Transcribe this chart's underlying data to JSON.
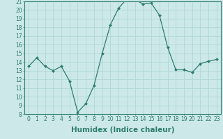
{
  "xlabel": "Humidex (Indice chaleur)",
  "x": [
    0,
    1,
    2,
    3,
    4,
    5,
    6,
    7,
    8,
    9,
    10,
    11,
    12,
    13,
    14,
    15,
    16,
    17,
    18,
    19,
    20,
    21,
    22,
    23
  ],
  "y": [
    13.5,
    14.5,
    13.5,
    13.0,
    13.5,
    11.8,
    8.2,
    9.2,
    11.3,
    15.0,
    18.3,
    20.2,
    21.3,
    21.2,
    20.7,
    20.8,
    19.4,
    15.7,
    13.1,
    13.1,
    12.8,
    13.8,
    14.1,
    14.3
  ],
  "line_color": "#2e7d6e",
  "marker": "D",
  "marker_size": 2.0,
  "bg_color": "#cce8e8",
  "grid_color": "#b0d8d8",
  "ylim": [
    8,
    21
  ],
  "xlim": [
    -0.5,
    23.5
  ],
  "yticks": [
    8,
    9,
    10,
    11,
    12,
    13,
    14,
    15,
    16,
    17,
    18,
    19,
    20,
    21
  ],
  "xticks": [
    0,
    1,
    2,
    3,
    4,
    5,
    6,
    7,
    8,
    9,
    10,
    11,
    12,
    13,
    14,
    15,
    16,
    17,
    18,
    19,
    20,
    21,
    22,
    23
  ],
  "tick_fontsize": 5.5,
  "label_fontsize": 7.5
}
